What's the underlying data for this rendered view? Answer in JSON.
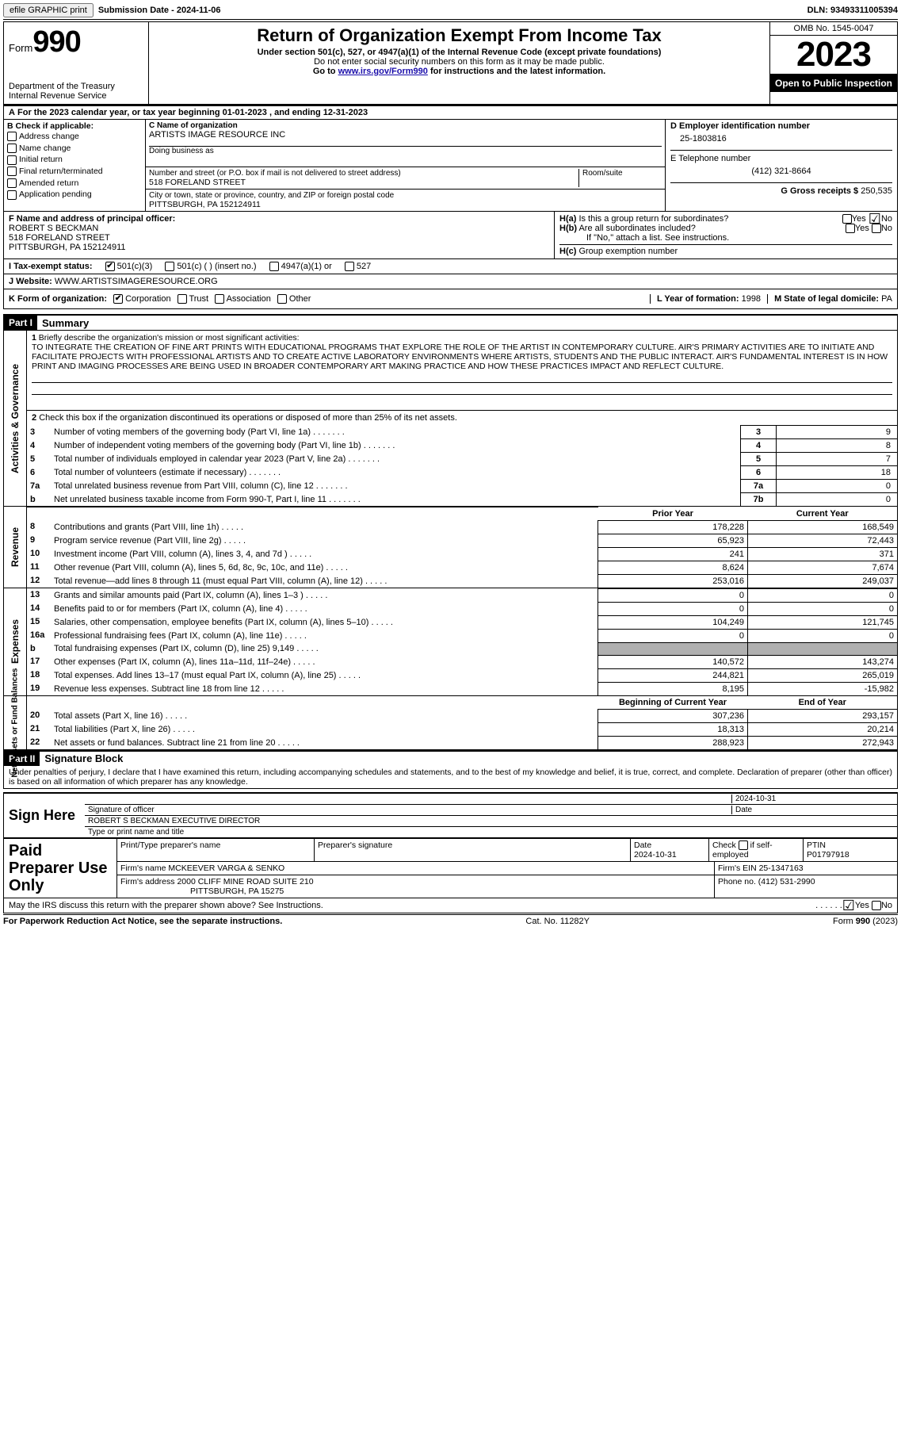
{
  "topbar": {
    "efile": "efile GRAPHIC print",
    "submission_label": "Submission Date - ",
    "submission_date": "2024-11-06",
    "dln_label": "DLN: ",
    "dln": "93493311005394"
  },
  "header": {
    "form_label": "Form",
    "form_number": "990",
    "dept": "Department of the Treasury\nInternal Revenue Service",
    "title": "Return of Organization Exempt From Income Tax",
    "sub1": "Under section 501(c), 527, or 4947(a)(1) of the Internal Revenue Code (except private foundations)",
    "sub2": "Do not enter social security numbers on this form as it may be made public.",
    "sub3_pre": "Go to ",
    "sub3_link": "www.irs.gov/Form990",
    "sub3_post": " for instructions and the latest information.",
    "omb": "OMB No. 1545-0047",
    "year": "2023",
    "open": "Open to Public Inspection"
  },
  "line_a": {
    "text_pre": "For the 2023 calendar year, or tax year beginning ",
    "begin": "01-01-2023",
    "mid": " , and ending ",
    "end": "12-31-2023"
  },
  "box_b": {
    "header": "B Check if applicable:",
    "items": [
      "Address change",
      "Name change",
      "Initial return",
      "Final return/terminated",
      "Amended return",
      "Application pending"
    ]
  },
  "box_c": {
    "label": "C Name of organization",
    "org": "ARTISTS IMAGE RESOURCE INC",
    "dba_label": "Doing business as",
    "street_label": "Number and street (or P.O. box if mail is not delivered to street address)",
    "room_label": "Room/suite",
    "street": "518 FORELAND STREET",
    "city_label": "City or town, state or province, country, and ZIP or foreign postal code",
    "city": "PITTSBURGH, PA  152124911"
  },
  "box_d": {
    "label": "D Employer identification number",
    "ein": "25-1803816",
    "e_label": "E Telephone number",
    "phone": "(412) 321-8664",
    "g_label": "G Gross receipts $ ",
    "g_val": "250,535"
  },
  "box_f": {
    "label": "F  Name and address of principal officer:",
    "name": "ROBERT S BECKMAN",
    "addr1": "518 FORELAND STREET",
    "addr2": "PITTSBURGH, PA  152124911"
  },
  "box_h": {
    "ha_label": "H(a)  Is this a group return for subordinates?",
    "hb_label": "H(b)  Are all subordinates included?",
    "hb_note": "If \"No,\" attach a list. See instructions.",
    "hc_label": "H(c)  Group exemption number ",
    "yes": "Yes",
    "no": "No"
  },
  "row_i": {
    "label": "I    Tax-exempt status:",
    "opt1": "501(c)(3)",
    "opt2": "501(c) (  ) (insert no.)",
    "opt3": "4947(a)(1) or",
    "opt4": "527"
  },
  "row_j": {
    "label": "J    Website: ",
    "url": "WWW.ARTISTSIMAGERESOURCE.ORG"
  },
  "row_k": {
    "label": "K Form of organization:",
    "opts": [
      "Corporation",
      "Trust",
      "Association",
      "Other"
    ],
    "l_label": "L Year of formation: ",
    "l_val": "1998",
    "m_label": "M State of legal domicile: ",
    "m_val": "PA"
  },
  "part1": {
    "header": "Part I",
    "title": "Summary",
    "q1_label": "1",
    "q1_text": "Briefly describe the organization's mission or most significant activities:",
    "mission": "TO INTEGRATE THE CREATION OF FINE ART PRINTS WITH EDUCATIONAL PROGRAMS THAT EXPLORE THE ROLE OF THE ARTIST IN CONTEMPORARY CULTURE. AIR'S PRIMARY ACTIVITIES ARE TO INITIATE AND FACILITATE PROJECTS WITH PROFESSIONAL ARTISTS AND TO CREATE ACTIVE LABORATORY ENVIRONMENTS WHERE ARTISTS, STUDENTS AND THE PUBLIC INTERACT. AIR'S FUNDAMENTAL INTEREST IS IN HOW PRINT AND IMAGING PROCESSES ARE BEING USED IN BROADER CONTEMPORARY ART MAKING PRACTICE AND HOW THESE PRACTICES IMPACT AND REFLECT CULTURE.",
    "q2": "Check this box      if the organization discontinued its operations or disposed of more than 25% of its net assets.",
    "vlabel_ag": "Activities & Governance",
    "vlabel_rev": "Revenue",
    "vlabel_exp": "Expenses",
    "vlabel_na": "Net Assets or Fund Balances",
    "rows_ag": [
      {
        "n": "3",
        "t": "Number of voting members of the governing body (Part VI, line 1a)",
        "b": "3",
        "v": "9"
      },
      {
        "n": "4",
        "t": "Number of independent voting members of the governing body (Part VI, line 1b)",
        "b": "4",
        "v": "8"
      },
      {
        "n": "5",
        "t": "Total number of individuals employed in calendar year 2023 (Part V, line 2a)",
        "b": "5",
        "v": "7"
      },
      {
        "n": "6",
        "t": "Total number of volunteers (estimate if necessary)",
        "b": "6",
        "v": "18"
      },
      {
        "n": "7a",
        "t": "Total unrelated business revenue from Part VIII, column (C), line 12",
        "b": "7a",
        "v": "0"
      },
      {
        "n": "b",
        "t": "Net unrelated business taxable income from Form 990-T, Part I, line 11",
        "b": "7b",
        "v": "0"
      }
    ],
    "col_head": {
      "prior": "Prior Year",
      "current": "Current Year",
      "boy": "Beginning of Current Year",
      "eoy": "End of Year"
    },
    "rows_rev": [
      {
        "n": "8",
        "t": "Contributions and grants (Part VIII, line 1h)",
        "p": "178,228",
        "c": "168,549"
      },
      {
        "n": "9",
        "t": "Program service revenue (Part VIII, line 2g)",
        "p": "65,923",
        "c": "72,443"
      },
      {
        "n": "10",
        "t": "Investment income (Part VIII, column (A), lines 3, 4, and 7d )",
        "p": "241",
        "c": "371"
      },
      {
        "n": "11",
        "t": "Other revenue (Part VIII, column (A), lines 5, 6d, 8c, 9c, 10c, and 11e)",
        "p": "8,624",
        "c": "7,674"
      },
      {
        "n": "12",
        "t": "Total revenue—add lines 8 through 11 (must equal Part VIII, column (A), line 12)",
        "p": "253,016",
        "c": "249,037"
      }
    ],
    "rows_exp": [
      {
        "n": "13",
        "t": "Grants and similar amounts paid (Part IX, column (A), lines 1–3 )",
        "p": "0",
        "c": "0"
      },
      {
        "n": "14",
        "t": "Benefits paid to or for members (Part IX, column (A), line 4)",
        "p": "0",
        "c": "0"
      },
      {
        "n": "15",
        "t": "Salaries, other compensation, employee benefits (Part IX, column (A), lines 5–10)",
        "p": "104,249",
        "c": "121,745"
      },
      {
        "n": "16a",
        "t": "Professional fundraising fees (Part IX, column (A), line 11e)",
        "p": "0",
        "c": "0"
      },
      {
        "n": "b",
        "t": "Total fundraising expenses (Part IX, column (D), line 25) 9,149",
        "p": "GREY",
        "c": "GREY"
      },
      {
        "n": "17",
        "t": "Other expenses (Part IX, column (A), lines 11a–11d, 11f–24e)",
        "p": "140,572",
        "c": "143,274"
      },
      {
        "n": "18",
        "t": "Total expenses. Add lines 13–17 (must equal Part IX, column (A), line 25)",
        "p": "244,821",
        "c": "265,019"
      },
      {
        "n": "19",
        "t": "Revenue less expenses. Subtract line 18 from line 12",
        "p": "8,195",
        "c": "-15,982"
      }
    ],
    "rows_na": [
      {
        "n": "20",
        "t": "Total assets (Part X, line 16)",
        "p": "307,236",
        "c": "293,157"
      },
      {
        "n": "21",
        "t": "Total liabilities (Part X, line 26)",
        "p": "18,313",
        "c": "20,214"
      },
      {
        "n": "22",
        "t": "Net assets or fund balances. Subtract line 21 from line 20",
        "p": "288,923",
        "c": "272,943"
      }
    ]
  },
  "part2": {
    "header": "Part II",
    "title": "Signature Block",
    "decl": "Under penalties of perjury, I declare that I have examined this return, including accompanying schedules and statements, and to the best of my knowledge and belief, it is true, correct, and complete. Declaration of preparer (other than officer) is based on all information of which preparer has any knowledge."
  },
  "sign": {
    "left": "Sign Here",
    "sig_label": "Signature of officer",
    "date_label": "Date",
    "date_val": "2024-10-31",
    "name": "ROBERT S BECKMAN  EXECUTIVE DIRECTOR",
    "name_label": "Type or print name and title"
  },
  "paid": {
    "left": "Paid Preparer Use Only",
    "h1": "Print/Type preparer's name",
    "h2": "Preparer's signature",
    "h3": "Date",
    "h3v": "2024-10-31",
    "h4": "Check       if self-employed",
    "h5": "PTIN",
    "ptin": "P01797918",
    "firm_label": "Firm's name    ",
    "firm": "MCKEEVER VARGA & SENKO",
    "ein_label": "Firm's EIN  ",
    "ein": "25-1347163",
    "addr_label": "Firm's address ",
    "addr1": "2000 CLIFF MINE ROAD SUITE 210",
    "addr2": "PITTSBURGH, PA  15275",
    "phone_label": "Phone no. ",
    "phone": "(412) 531-2990"
  },
  "footer": {
    "q": "May the IRS discuss this return with the preparer shown above? See Instructions.",
    "yes": "Yes",
    "no": "No",
    "pra": "For Paperwork Reduction Act Notice, see the separate instructions.",
    "cat": "Cat. No. 11282Y",
    "form": "Form 990 (2023)"
  }
}
